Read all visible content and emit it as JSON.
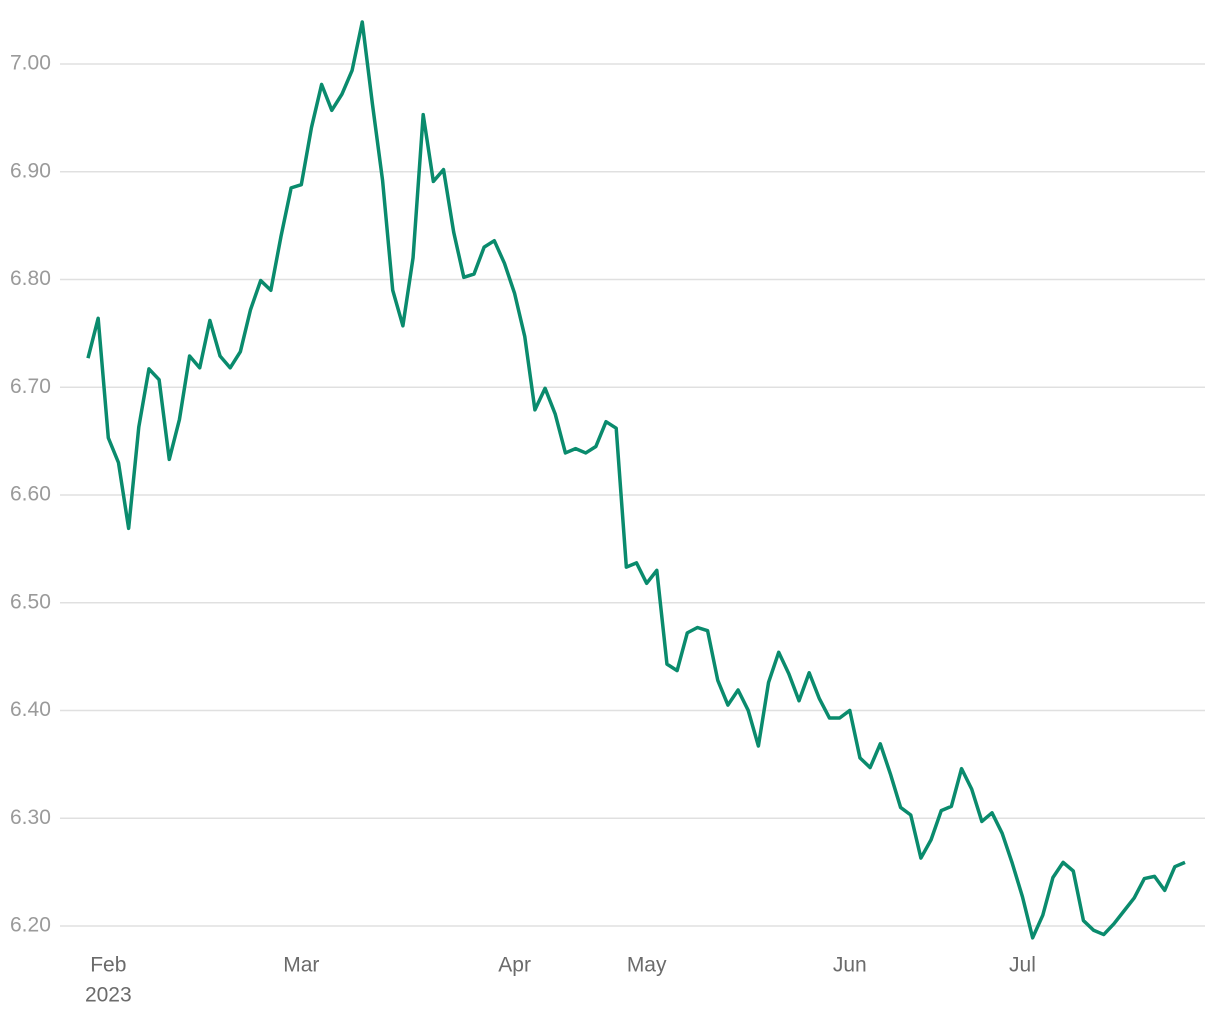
{
  "chart_data": {
    "type": "line",
    "categories": [
      null,
      null,
      "Feb",
      null,
      null,
      null,
      null,
      null,
      null,
      null,
      null,
      null,
      null,
      null,
      null,
      null,
      null,
      null,
      null,
      null,
      null,
      "Mar",
      null,
      null,
      null,
      null,
      null,
      null,
      null,
      null,
      null,
      null,
      null,
      null,
      null,
      null,
      null,
      null,
      null,
      null,
      null,
      null,
      "Apr",
      null,
      null,
      null,
      null,
      null,
      null,
      null,
      null,
      null,
      null,
      null,
      null,
      "May",
      null,
      null,
      null,
      null,
      null,
      null,
      null,
      null,
      null,
      null,
      null,
      null,
      null,
      null,
      null,
      null,
      null,
      null,
      null,
      "Jun",
      null,
      null,
      null,
      null,
      null,
      null,
      null,
      null,
      null,
      null,
      null,
      null,
      null,
      null,
      null,
      null,
      "Jul",
      null,
      null,
      null,
      null,
      null,
      null,
      null,
      null,
      null,
      null,
      null,
      null,
      null,
      null,
      null,
      null
    ],
    "year_label": "2023",
    "series": [
      {
        "color": "#0a8b6d",
        "values": [
          6.727,
          6.764,
          6.653,
          6.63,
          6.569,
          6.663,
          6.717,
          6.707,
          6.633,
          6.67,
          6.729,
          6.718,
          6.762,
          6.729,
          6.718,
          6.733,
          6.772,
          6.799,
          6.79,
          6.84,
          6.885,
          6.888,
          6.941,
          6.981,
          6.957,
          6.972,
          6.994,
          7.039,
          6.963,
          6.892,
          6.79,
          6.757,
          6.82,
          6.953,
          6.891,
          6.902,
          6.844,
          6.802,
          6.805,
          6.83,
          6.836,
          6.815,
          6.787,
          6.747,
          6.679,
          6.699,
          6.675,
          6.639,
          6.643,
          6.639,
          6.645,
          6.668,
          6.662,
          6.533,
          6.537,
          6.518,
          6.53,
          6.443,
          6.437,
          6.472,
          6.477,
          6.474,
          6.428,
          6.405,
          6.419,
          6.4,
          6.367,
          6.426,
          6.454,
          6.434,
          6.409,
          6.435,
          6.411,
          6.393,
          6.393,
          6.4,
          6.356,
          6.347,
          6.369,
          6.341,
          6.31,
          6.303,
          6.263,
          6.28,
          6.307,
          6.311,
          6.346,
          6.327,
          6.297,
          6.305,
          6.286,
          6.258,
          6.227,
          6.189,
          6.21,
          6.245,
          6.259,
          6.251,
          6.205,
          6.196,
          6.192,
          6.202,
          6.214,
          6.226,
          6.244,
          6.246,
          6.233,
          6.255,
          6.259
        ]
      }
    ],
    "ylim": [
      6.18,
      7.045
    ],
    "yticks": [
      {
        "value": 6.2,
        "label": "6.20"
      },
      {
        "value": 6.3,
        "label": "6.30"
      },
      {
        "value": 6.4,
        "label": "6.40"
      },
      {
        "value": 6.5,
        "label": "6.50"
      },
      {
        "value": 6.6,
        "label": "6.60"
      },
      {
        "value": 6.7,
        "label": "6.70"
      },
      {
        "value": 6.8,
        "label": "6.80"
      },
      {
        "value": 6.9,
        "label": "6.90"
      },
      {
        "value": 7.0,
        "label": "7.00"
      }
    ],
    "grid": true
  }
}
